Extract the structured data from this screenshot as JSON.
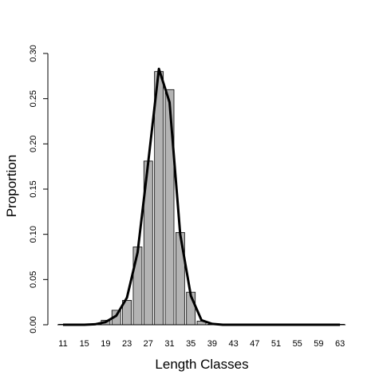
{
  "chart_data": {
    "type": "bar",
    "xlabel": "Length Classes",
    "ylabel": "Proportion",
    "ylim": [
      0,
      0.3
    ],
    "yticks": [
      "0.00",
      "0.05",
      "0.10",
      "0.15",
      "0.20",
      "0.25",
      "0.30"
    ],
    "categories": [
      11,
      13,
      15,
      17,
      19,
      21,
      23,
      25,
      27,
      29,
      31,
      33,
      35,
      37,
      39,
      41,
      43,
      45,
      47,
      49,
      51,
      53,
      55,
      57,
      59,
      61,
      63
    ],
    "x_tick_labels": [
      "11",
      "15",
      "19",
      "23",
      "27",
      "31",
      "35",
      "39",
      "43",
      "47",
      "51",
      "55",
      "59",
      "63"
    ],
    "series": [
      {
        "kind": "bar",
        "values": [
          0,
          0,
          0,
          0,
          0.005,
          0.016,
          0.027,
          0.086,
          0.181,
          0.28,
          0.26,
          0.102,
          0.036,
          0.004,
          0,
          0,
          0,
          0,
          0,
          0,
          0,
          0,
          0,
          0,
          0,
          0,
          0
        ]
      },
      {
        "kind": "line",
        "values": [
          0,
          0,
          0,
          0.0005,
          0.003,
          0.01,
          0.03,
          0.08,
          0.18,
          0.283,
          0.246,
          0.1,
          0.032,
          0.005,
          0.001,
          0,
          0,
          0,
          0,
          0,
          0,
          0,
          0,
          0,
          0,
          0,
          0
        ]
      }
    ],
    "colors": {
      "bar_fill": "#b3b3b3",
      "bar_stroke": "#000000",
      "line": "#000000"
    },
    "grid": false,
    "legend": "none"
  }
}
